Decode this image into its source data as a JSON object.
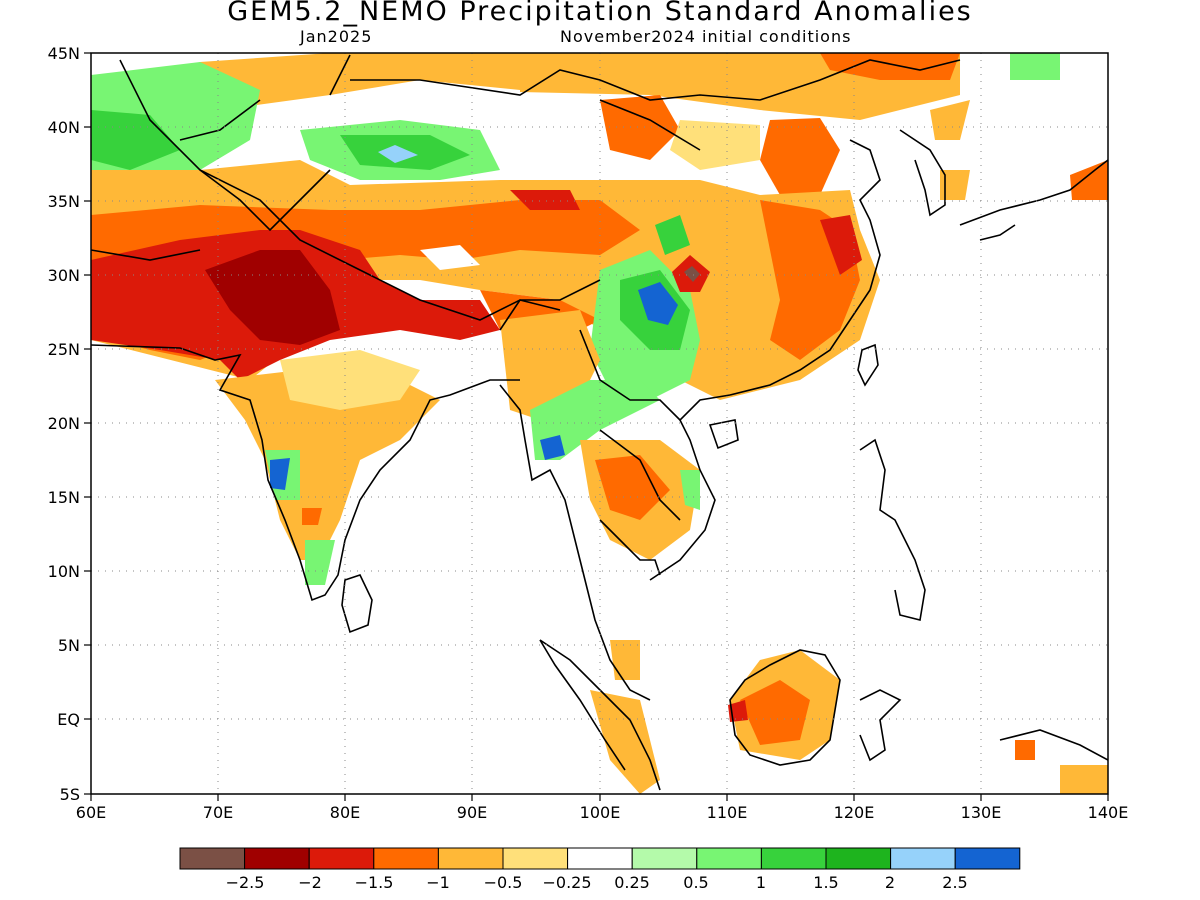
{
  "title": "GEM5.2_NEMO Precipitation Standard Anomalies",
  "subtitle_left": "Jan2025",
  "subtitle_right": "November2024 initial conditions",
  "map": {
    "lon_range": [
      60,
      140
    ],
    "lat_range": [
      -5,
      45
    ],
    "lon_ticks": [
      "60E",
      "70E",
      "80E",
      "90E",
      "100E",
      "110E",
      "120E",
      "130E",
      "140E"
    ],
    "lat_ticks": [
      "45N",
      "40N",
      "35N",
      "30N",
      "25N",
      "20N",
      "15N",
      "10N",
      "5N",
      "EQ",
      "5S"
    ],
    "grid": "dotted"
  },
  "legend": {
    "colors": [
      "#7b5045",
      "#a00000",
      "#dc1a0a",
      "#ff6a00",
      "#ffb837",
      "#ffe07a",
      "#ffffff",
      "#b4faaa",
      "#78f573",
      "#37d23c",
      "#1eb41e",
      "#96d2fa",
      "#1464d2"
    ],
    "labels": [
      "−2.5",
      "−2",
      "−1.5",
      "−1",
      "−0.5",
      "−0.25",
      "0.25",
      "0.5",
      "1",
      "1.5",
      "2",
      "2.5"
    ]
  }
}
